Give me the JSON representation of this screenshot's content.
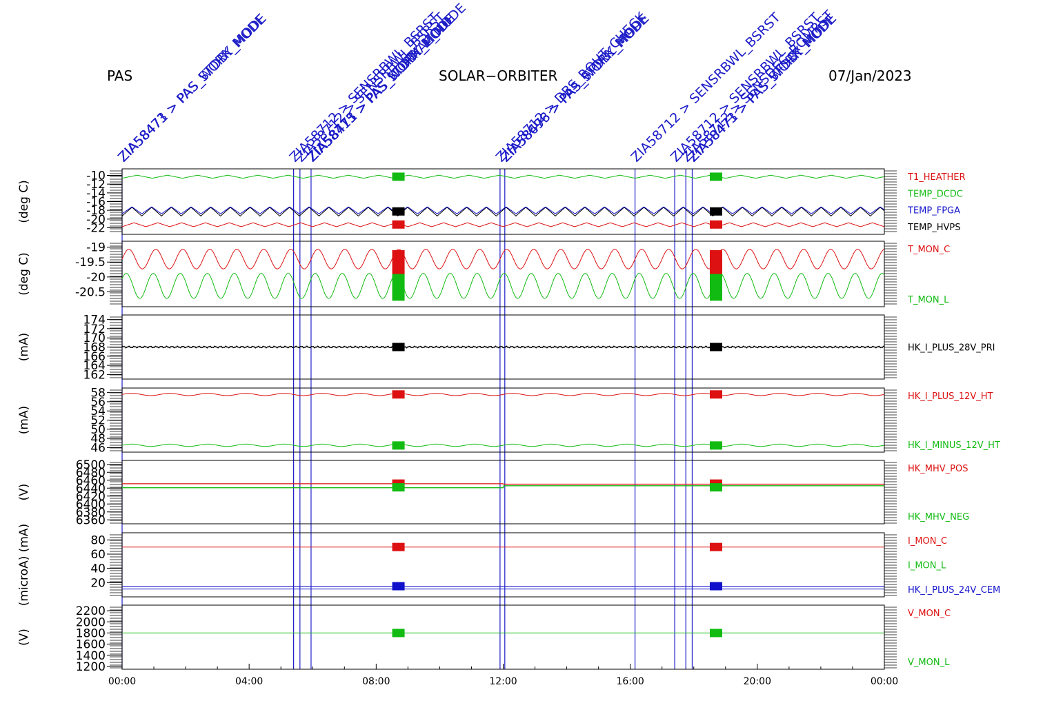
{
  "header": {
    "left": "PAS",
    "center": "SOLAR−ORBITER",
    "right": "07/Jan/2023"
  },
  "events": [
    {
      "t": 0.0,
      "labels": [
        "ZIA58473 > PAS_STDBY_MODE",
        "ZIA58471 > PAS_WORK_MODE"
      ]
    },
    {
      "t": 5.4,
      "labels": [
        "ZIA58712 > SENSRBWL_BSRST"
      ]
    },
    {
      "t": 5.6,
      "labels": [
        "ZIA58712 > SENSRBWL_BSRST"
      ]
    },
    {
      "t": 5.95,
      "labels": [
        "ZIA58715 > PAS_STDBY_MODE",
        "ZIA58473 > PAS_WORK_MODE",
        "ZIA58471 > PAS_NORMAL_MODE"
      ]
    },
    {
      "t": 11.9,
      "labels": [
        "ZIA58712 > DBS_ROUT_CHECK"
      ]
    },
    {
      "t": 12.05,
      "labels": [
        "ZIA58696 > PAS_STDBY_MODE",
        "ZIA58473 > PAS_WORK_MODE"
      ]
    },
    {
      "t": 16.15,
      "labels": [
        "ZIA58712 > SENSRBWL_BSRST"
      ]
    },
    {
      "t": 17.4,
      "labels": [
        "ZIA58712 > SENSRBWL_BSRST"
      ]
    },
    {
      "t": 17.75,
      "labels": [
        "ZIA58712 > SENSDEC_ROMRST"
      ]
    },
    {
      "t": 17.95,
      "labels": [
        "ZIA58473 > PAS_STDBY_MODE",
        "ZIA58471 > PAS_WORK_MODE"
      ]
    }
  ],
  "x_ticks": [
    "00:00",
    "04:00",
    "08:00",
    "12:00",
    "16:00",
    "20:00",
    "00:00"
  ],
  "colors": {
    "red": "#dd1111",
    "green": "#11bb11",
    "blue": "#1111cc",
    "black": "#000000",
    "event": "#1c1cc8"
  },
  "chart_data": [
    {
      "type": "line",
      "ylabel": "(deg C)",
      "ylim": [
        -23.5,
        -8.5
      ],
      "yticks": [
        -10,
        -12,
        -14,
        -16,
        -18,
        -20,
        -22
      ],
      "series": [
        {
          "name": "T1_HEATHER",
          "color": "red"
        },
        {
          "name": "TEMP_DCDC",
          "color": "green"
        },
        {
          "name": "TEMP_FPGA",
          "color": "blue"
        },
        {
          "name": "TEMP_HVPS",
          "color": "black"
        }
      ]
    },
    {
      "type": "line",
      "ylabel": "(deg C)",
      "ylim": [
        -21.0,
        -18.8
      ],
      "yticks": [
        -19.0,
        -19.5,
        -20.0,
        -20.5
      ],
      "series": [
        {
          "name": "T_MON_C",
          "color": "red"
        },
        {
          "name": "T_MON_L",
          "color": "green"
        }
      ]
    },
    {
      "type": "line",
      "ylabel": "(mA)",
      "ylim": [
        161,
        175
      ],
      "yticks": [
        162,
        164,
        166,
        168,
        170,
        172,
        174
      ],
      "series": [
        {
          "name": "HK_I_PLUS_28V_PRI",
          "color": "black"
        }
      ]
    },
    {
      "type": "line",
      "ylabel": "(mA)",
      "ylim": [
        45,
        59
      ],
      "yticks": [
        46,
        48,
        50,
        52,
        54,
        56,
        58
      ],
      "series": [
        {
          "name": "HK_I_PLUS_12V_HT",
          "color": "red"
        },
        {
          "name": "HK_I_MINUS_12V_HT",
          "color": "green"
        }
      ]
    },
    {
      "type": "line",
      "ylabel": "(V)",
      "ylim": [
        6350,
        6510
      ],
      "yticks": [
        6500,
        6480,
        6460,
        6440,
        6420,
        6400,
        6380,
        6360
      ],
      "series": [
        {
          "name": "HK_MHV_POS",
          "color": "red"
        },
        {
          "name": "HK_MHV_NEG",
          "color": "green"
        }
      ]
    },
    {
      "type": "line",
      "ylabel": "(microA) (mA)",
      "ylim": [
        0,
        90
      ],
      "yticks": [
        20,
        40,
        60,
        80
      ],
      "series": [
        {
          "name": "I_MON_C",
          "color": "red"
        },
        {
          "name": "I_MON_L",
          "color": "green"
        },
        {
          "name": "HK_I_PLUS_24V_CEM",
          "color": "blue"
        }
      ]
    },
    {
      "type": "line",
      "ylabel": "(V)",
      "ylim": [
        1150,
        2300
      ],
      "yticks": [
        1200,
        1400,
        1600,
        1800,
        2000,
        2200
      ],
      "series": [
        {
          "name": "V_MON_C",
          "color": "red"
        },
        {
          "name": "V_MON_L",
          "color": "green"
        }
      ]
    }
  ]
}
